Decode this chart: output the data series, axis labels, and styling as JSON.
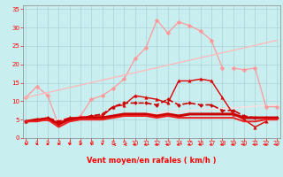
{
  "xlabel": "Vent moyen/en rafales ( km/h )",
  "background_color": "#c8eef0",
  "grid_color": "#aad4d8",
  "x_ticks": [
    0,
    1,
    2,
    3,
    4,
    5,
    6,
    7,
    8,
    9,
    10,
    11,
    12,
    13,
    14,
    15,
    16,
    17,
    18,
    19,
    20,
    21,
    22,
    23
  ],
  "ylim": [
    0,
    36
  ],
  "xlim": [
    -0.3,
    23.3
  ],
  "y_ticks": [
    0,
    5,
    10,
    15,
    20,
    25,
    30,
    35
  ],
  "series": [
    {
      "name": "rafales_light",
      "x": [
        0,
        1,
        2,
        3,
        4,
        5,
        6,
        7,
        8,
        9,
        10,
        11,
        12,
        13,
        14,
        15,
        16,
        17,
        18
      ],
      "y": [
        11.0,
        14.0,
        11.5,
        3.5,
        5.0,
        6.0,
        10.5,
        11.5,
        13.5,
        16.0,
        21.5,
        24.5,
        32.0,
        28.5,
        31.5,
        30.5,
        29.0,
        26.5,
        19.0
      ],
      "color": "#ff9999",
      "marker": "D",
      "markersize": 2.5,
      "linewidth": 0.9,
      "linestyle": "-"
    },
    {
      "name": "trend_upper",
      "x": [
        0,
        23
      ],
      "y": [
        11.0,
        26.5
      ],
      "color": "#ffbbbb",
      "marker": null,
      "markersize": 0,
      "linewidth": 1.0,
      "linestyle": "-"
    },
    {
      "name": "trend_lower",
      "x": [
        0,
        23
      ],
      "y": [
        4.5,
        9.0
      ],
      "color": "#ffdddd",
      "marker": null,
      "markersize": 0,
      "linewidth": 1.0,
      "linestyle": "-"
    },
    {
      "name": "rafales_tail",
      "x": [
        19,
        20,
        21,
        22,
        23
      ],
      "y": [
        19.0,
        18.5,
        19.0,
        8.5,
        8.5
      ],
      "color": "#ff9999",
      "marker": "D",
      "markersize": 2.5,
      "linewidth": 0.9,
      "linestyle": "-"
    },
    {
      "name": "vent_moyen_with_markers",
      "x": [
        0,
        1,
        2,
        3,
        4,
        5,
        6,
        7,
        8,
        9,
        10,
        11,
        12,
        13,
        14,
        15,
        16,
        17,
        18,
        19,
        20,
        21,
        22
      ],
      "y": [
        4.5,
        5.0,
        5.5,
        3.5,
        5.0,
        5.5,
        6.0,
        6.0,
        8.5,
        9.0,
        11.5,
        11.0,
        10.5,
        9.5,
        15.5,
        15.5,
        16.0,
        15.5,
        11.0,
        6.5,
        5.0,
        3.0,
        4.5
      ],
      "color": "#dd0000",
      "marker": "^",
      "markersize": 2.5,
      "linewidth": 1.0,
      "linestyle": "-"
    },
    {
      "name": "dashed_line",
      "x": [
        0,
        1,
        2,
        3,
        4,
        5,
        6,
        7,
        8,
        9,
        10,
        11,
        12,
        13,
        14,
        15,
        16,
        17,
        18,
        19,
        20,
        21,
        22,
        23
      ],
      "y": [
        4.5,
        5.0,
        5.5,
        4.5,
        5.5,
        5.5,
        6.0,
        6.5,
        8.5,
        9.5,
        9.5,
        9.5,
        9.0,
        10.5,
        9.0,
        9.5,
        9.0,
        9.0,
        7.5,
        7.5,
        6.0,
        5.5,
        5.5,
        5.5
      ],
      "color": "#cc0000",
      "marker": "D",
      "markersize": 2,
      "linewidth": 1.2,
      "linestyle": "--"
    },
    {
      "name": "solid_thick",
      "x": [
        0,
        1,
        2,
        3,
        4,
        5,
        6,
        7,
        8,
        9,
        10,
        11,
        12,
        13,
        14,
        15,
        16,
        17,
        18,
        19,
        20,
        21,
        22,
        23
      ],
      "y": [
        4.5,
        5.0,
        5.0,
        4.0,
        5.0,
        5.5,
        5.5,
        5.5,
        6.0,
        6.5,
        6.5,
        6.5,
        6.0,
        6.5,
        6.0,
        6.5,
        6.5,
        6.5,
        6.5,
        6.5,
        5.5,
        5.5,
        5.5,
        5.5
      ],
      "color": "#cc0000",
      "marker": null,
      "markersize": 0,
      "linewidth": 2.2,
      "linestyle": "-"
    },
    {
      "name": "solid_thin",
      "x": [
        0,
        1,
        2,
        3,
        4,
        5,
        6,
        7,
        8,
        9,
        10,
        11,
        12,
        13,
        14,
        15,
        16,
        17,
        18,
        19,
        20,
        21,
        22,
        23
      ],
      "y": [
        4.5,
        4.5,
        5.0,
        3.0,
        4.5,
        5.0,
        5.0,
        5.0,
        5.5,
        6.0,
        6.0,
        6.0,
        5.5,
        6.0,
        5.5,
        5.5,
        5.5,
        5.5,
        5.5,
        5.5,
        4.5,
        4.5,
        5.0,
        5.0
      ],
      "color": "#ee2020",
      "marker": null,
      "markersize": 0,
      "linewidth": 1.4,
      "linestyle": "-"
    }
  ],
  "wind_symbols": {
    "x": [
      0,
      1,
      2,
      3,
      4,
      5,
      6,
      7,
      8,
      9,
      10,
      11,
      12,
      13,
      14,
      15,
      16,
      17,
      18,
      19,
      20,
      21,
      22,
      23
    ],
    "angles_deg": [
      270,
      270,
      270,
      270,
      270,
      270,
      270,
      270,
      180,
      180,
      225,
      225,
      225,
      225,
      225,
      225,
      225,
      225,
      225,
      225,
      225,
      225,
      225,
      225
    ]
  }
}
